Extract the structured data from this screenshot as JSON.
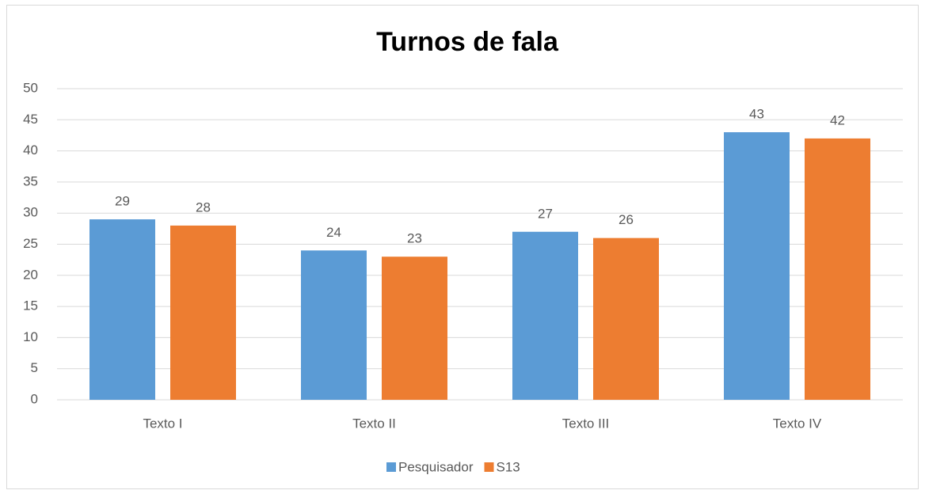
{
  "chart_data": {
    "type": "bar",
    "title": "Turnos de fala",
    "categories": [
      "Texto I",
      "Texto II",
      "Texto III",
      "Texto IV"
    ],
    "series": [
      {
        "name": "Pesquisador",
        "color": "#5b9bd5",
        "values": [
          29,
          24,
          27,
          43
        ]
      },
      {
        "name": "S13",
        "color": "#ed7d31",
        "values": [
          28,
          23,
          26,
          42
        ]
      }
    ],
    "ylim": [
      0,
      50
    ],
    "yticks": [
      0,
      5,
      10,
      15,
      20,
      25,
      30,
      35,
      40,
      45,
      50
    ],
    "grid": true,
    "legend": "bottom"
  }
}
